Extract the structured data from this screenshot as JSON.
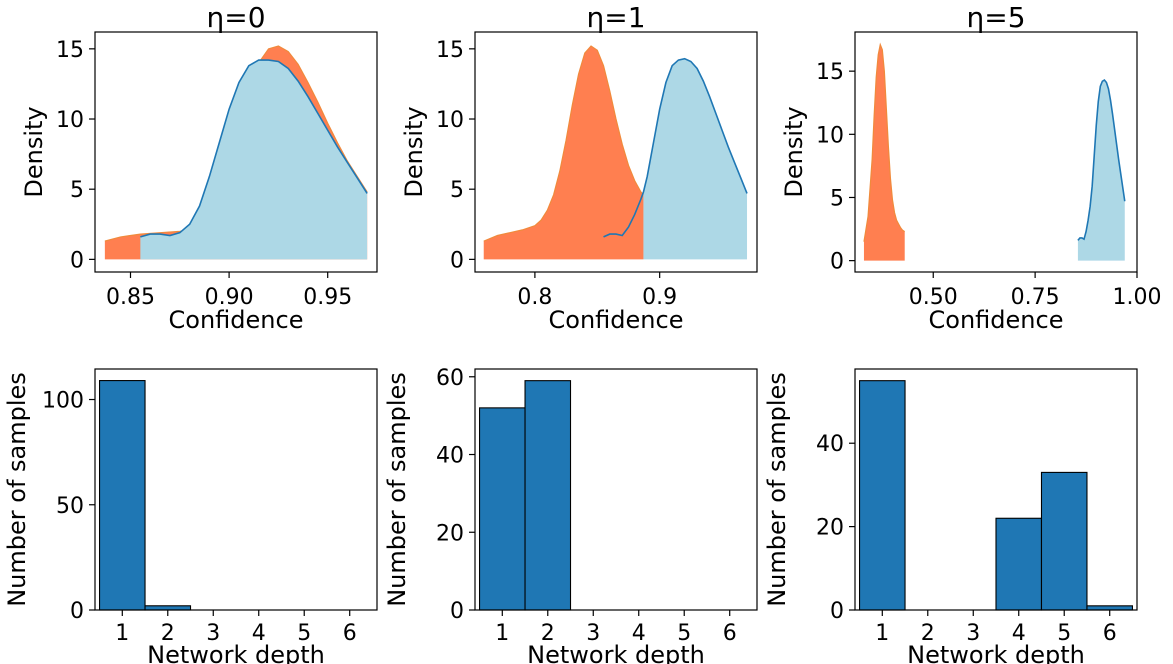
{
  "chart_data": [
    {
      "type": "area",
      "title": "η=0",
      "xlabel": "Confidence",
      "ylabel": "Density",
      "xlim": [
        0.832,
        0.975
      ],
      "ylim": [
        -0.9,
        16.2
      ],
      "xticks": [
        0.85,
        0.9,
        0.95
      ],
      "xtick_labels": [
        "0.85",
        "0.90",
        "0.95"
      ],
      "yticks": [
        0,
        5,
        10,
        15
      ],
      "ytick_labels": [
        "0",
        "5",
        "10",
        "15"
      ],
      "series": [
        {
          "style": "filled",
          "color": "#ff7f50",
          "x": [
            0.837,
            0.845,
            0.855,
            0.865,
            0.875,
            0.88,
            0.885,
            0.89,
            0.895,
            0.9,
            0.905,
            0.91,
            0.915,
            0.92,
            0.925,
            0.93,
            0.935,
            0.94,
            0.945,
            0.95,
            0.955,
            0.96,
            0.965,
            0.97
          ],
          "y": [
            1.3,
            1.6,
            1.8,
            1.9,
            2.0,
            2.1,
            2.3,
            3.0,
            4.5,
            6.5,
            9.0,
            11.8,
            14.0,
            15.0,
            15.2,
            14.8,
            13.9,
            12.6,
            11.2,
            9.7,
            8.3,
            7.0,
            5.9,
            4.8
          ]
        },
        {
          "style": "filled-with-line",
          "color": "#add8e6",
          "line_color": "#1f77b4",
          "x": [
            0.855,
            0.86,
            0.865,
            0.87,
            0.875,
            0.88,
            0.885,
            0.89,
            0.895,
            0.9,
            0.905,
            0.91,
            0.915,
            0.92,
            0.925,
            0.93,
            0.935,
            0.94,
            0.945,
            0.95,
            0.955,
            0.96,
            0.965,
            0.97
          ],
          "y": [
            1.6,
            1.8,
            1.8,
            1.7,
            1.9,
            2.5,
            3.8,
            5.9,
            8.3,
            10.7,
            12.6,
            13.8,
            14.2,
            14.2,
            14.1,
            13.6,
            12.7,
            11.6,
            10.4,
            9.2,
            8.0,
            6.9,
            5.8,
            4.7
          ]
        }
      ]
    },
    {
      "type": "area",
      "title": "η=1",
      "xlabel": "Confidence",
      "ylabel": "Density",
      "xlim": [
        0.752,
        0.978
      ],
      "ylim": [
        -0.9,
        16.2
      ],
      "xticks": [
        0.8,
        0.9
      ],
      "xtick_labels": [
        "0.8",
        "0.9"
      ],
      "yticks": [
        0,
        5,
        10,
        15
      ],
      "ytick_labels": [
        "0",
        "5",
        "10",
        "15"
      ],
      "series": [
        {
          "style": "filled",
          "color": "#ff7f50",
          "x": [
            0.759,
            0.77,
            0.78,
            0.79,
            0.8,
            0.805,
            0.81,
            0.815,
            0.82,
            0.825,
            0.83,
            0.835,
            0.84,
            0.845,
            0.85,
            0.855,
            0.86,
            0.865,
            0.87,
            0.875,
            0.88,
            0.885,
            0.887
          ],
          "y": [
            1.3,
            1.7,
            1.9,
            2.1,
            2.4,
            2.8,
            3.5,
            4.6,
            6.3,
            8.5,
            11.0,
            13.2,
            14.7,
            15.2,
            14.9,
            13.8,
            12.0,
            10.0,
            8.2,
            6.7,
            5.6,
            4.8,
            4.6
          ]
        },
        {
          "style": "filled-with-line",
          "color": "#add8e6",
          "line_color": "#1f77b4",
          "fill_from": 0.887,
          "x": [
            0.855,
            0.86,
            0.865,
            0.87,
            0.875,
            0.88,
            0.885,
            0.887,
            0.89,
            0.895,
            0.9,
            0.905,
            0.91,
            0.915,
            0.92,
            0.925,
            0.93,
            0.935,
            0.94,
            0.945,
            0.95,
            0.955,
            0.96,
            0.965,
            0.97
          ],
          "y": [
            1.6,
            1.8,
            1.8,
            1.7,
            2.3,
            3.2,
            4.3,
            4.8,
            5.9,
            8.3,
            10.7,
            12.6,
            13.8,
            14.2,
            14.3,
            14.1,
            13.6,
            12.7,
            11.6,
            10.4,
            9.2,
            8.0,
            6.9,
            5.8,
            4.7
          ]
        }
      ]
    },
    {
      "type": "area",
      "title": "η=5",
      "xlabel": "Confidence",
      "ylabel": "Density",
      "xlim": [
        0.308,
        1.0
      ],
      "ylim": [
        -0.9,
        18.1
      ],
      "xticks": [
        0.5,
        0.75,
        1.0
      ],
      "xtick_labels": [
        "0.50",
        "0.75",
        "1.00"
      ],
      "yticks": [
        0,
        5,
        10,
        15
      ],
      "ytick_labels": [
        "0",
        "5",
        "10",
        "15"
      ],
      "series": [
        {
          "style": "filled",
          "color": "#ff7f50",
          "x": [
            0.33,
            0.34,
            0.35,
            0.355,
            0.36,
            0.365,
            0.37,
            0.375,
            0.38,
            0.385,
            0.39,
            0.395,
            0.4,
            0.405,
            0.41,
            0.415,
            0.42,
            0.425,
            0.43
          ],
          "y": [
            1.5,
            3.5,
            8.0,
            11.5,
            14.5,
            16.3,
            17.1,
            16.7,
            15.0,
            12.0,
            9.0,
            6.5,
            4.8,
            3.8,
            3.2,
            2.9,
            2.6,
            2.4,
            2.3
          ],
          "base_from": 0.33,
          "base_to": 0.43
        },
        {
          "style": "filled-with-line",
          "color": "#add8e6",
          "line_color": "#1f77b4",
          "x": [
            0.855,
            0.86,
            0.865,
            0.87,
            0.875,
            0.88,
            0.885,
            0.89,
            0.895,
            0.9,
            0.905,
            0.91,
            0.915,
            0.92,
            0.925,
            0.93,
            0.935,
            0.94,
            0.945,
            0.95,
            0.955,
            0.96,
            0.965,
            0.97
          ],
          "y": [
            1.6,
            1.8,
            1.8,
            1.7,
            2.3,
            3.2,
            4.3,
            5.9,
            8.3,
            10.7,
            12.6,
            13.8,
            14.2,
            14.3,
            14.1,
            13.6,
            12.7,
            11.6,
            10.4,
            9.2,
            8.0,
            6.9,
            5.8,
            4.7
          ]
        }
      ]
    },
    {
      "type": "bar",
      "title": "",
      "xlabel": "Network depth",
      "ylabel": "Number of samples",
      "categories": [
        "1",
        "2",
        "3",
        "4",
        "5",
        "6"
      ],
      "values": [
        109,
        2,
        0,
        0,
        0,
        0
      ],
      "ylim": [
        0,
        114.5
      ],
      "yticks": [
        0,
        50,
        100
      ],
      "ytick_labels": [
        "0",
        "50",
        "100"
      ],
      "color": "#1f77b4"
    },
    {
      "type": "bar",
      "title": "",
      "xlabel": "Network depth",
      "ylabel": "Number of samples",
      "categories": [
        "1",
        "2",
        "3",
        "4",
        "5",
        "6"
      ],
      "values": [
        52,
        59,
        0,
        0,
        0,
        0
      ],
      "ylim": [
        0,
        62
      ],
      "yticks": [
        0,
        20,
        40,
        60
      ],
      "ytick_labels": [
        "0",
        "20",
        "40",
        "60"
      ],
      "color": "#1f77b4"
    },
    {
      "type": "bar",
      "title": "",
      "xlabel": "Network depth",
      "ylabel": "Number of samples",
      "categories": [
        "1",
        "2",
        "3",
        "4",
        "5",
        "6"
      ],
      "values": [
        55,
        0,
        0,
        22,
        33,
        1
      ],
      "ylim": [
        0,
        57.8
      ],
      "yticks": [
        0,
        20,
        40
      ],
      "ytick_labels": [
        "0",
        "20",
        "40"
      ],
      "color": "#1f77b4"
    }
  ]
}
